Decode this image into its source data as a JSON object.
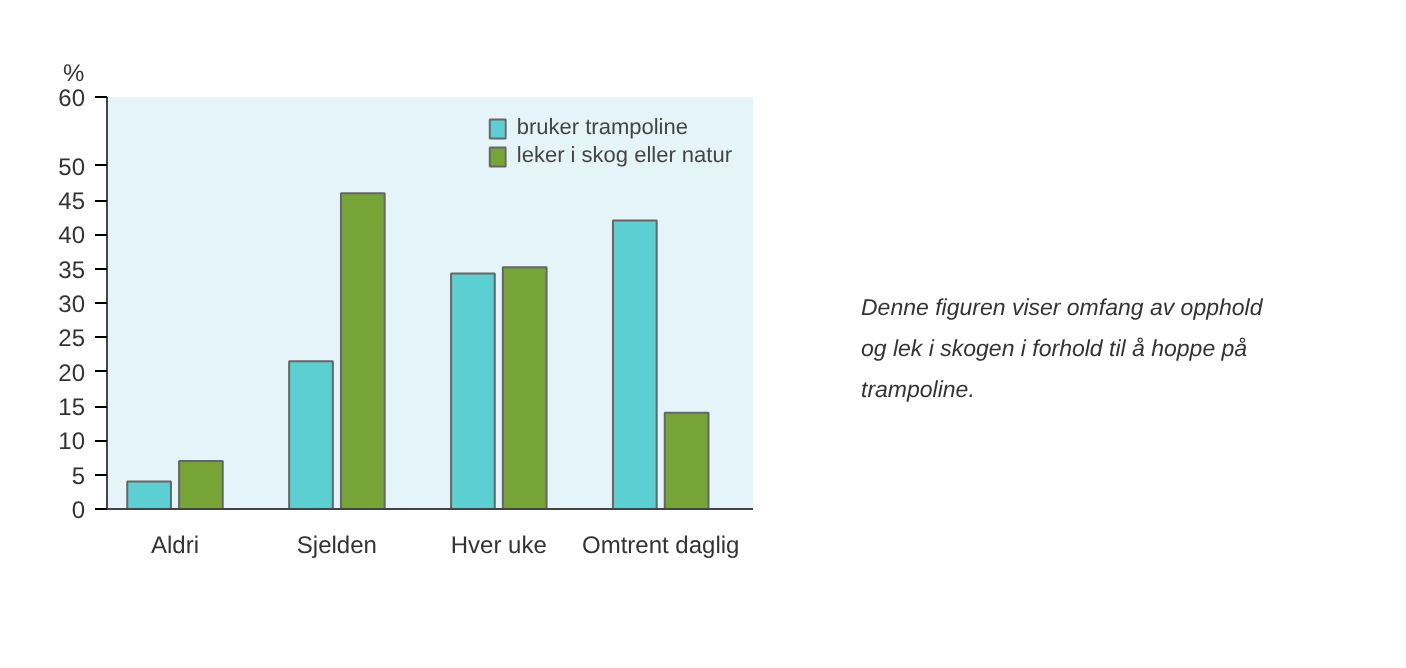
{
  "chart_data": {
    "type": "bar",
    "ylabel": "%",
    "categories": [
      "Aldri",
      "Sjelden",
      "Hver uke",
      "Omtrent daglig"
    ],
    "series": [
      {
        "name": "bruker trampoline",
        "color": "#5bcfd1",
        "values": [
          4,
          21.5,
          34.3,
          42
        ]
      },
      {
        "name": "leker i skog eller natur",
        "color": "#76a436",
        "values": [
          7,
          46,
          35.2,
          14
        ]
      }
    ],
    "ylim": [
      0,
      60
    ],
    "yticks": [
      0,
      5,
      10,
      15,
      20,
      25,
      30,
      35,
      40,
      45,
      50,
      60
    ],
    "grid": false,
    "legend": "top right",
    "annotations": [
      "Denne figuren viser omfang av opphold\nog lek i skogen i forhold til å hoppe på\ntrampoline."
    ]
  }
}
